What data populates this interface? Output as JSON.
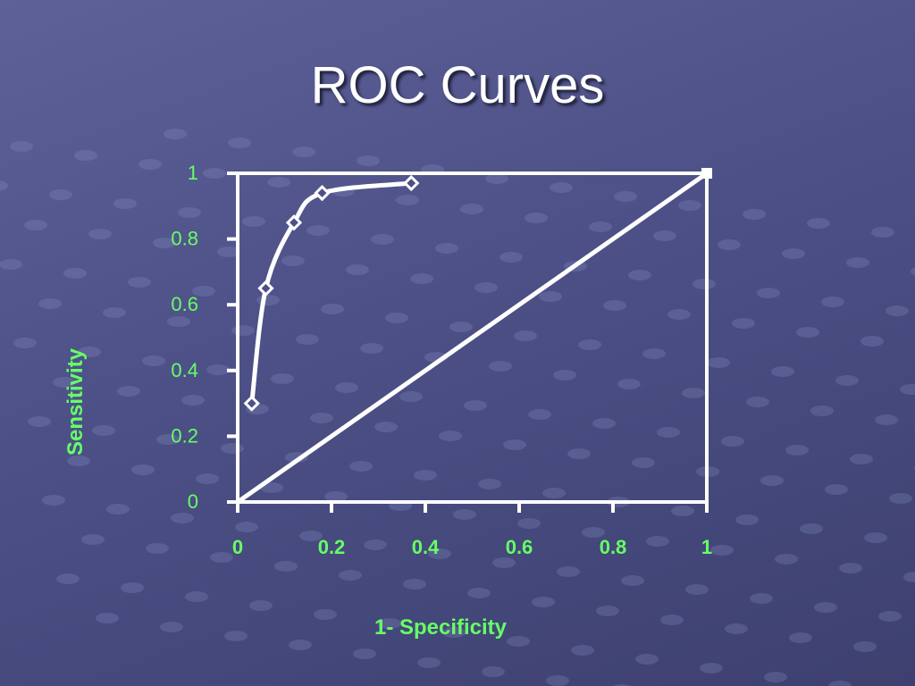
{
  "slide": {
    "title": "ROC Curves"
  },
  "colors": {
    "background_top": "#5d6197",
    "background_bottom": "#3d406f",
    "title": "#ffffff",
    "axis_text": "#66ff66",
    "line": "#ffffff"
  },
  "chart_data": {
    "type": "line",
    "title": "",
    "xlabel": "1- Specificity",
    "ylabel": "Sensitivity",
    "xlim": [
      0,
      1
    ],
    "ylim": [
      0,
      1
    ],
    "x_ticks": [
      "0",
      "0.2",
      "0.4",
      "0.6",
      "0.8",
      "1"
    ],
    "y_ticks": [
      "0",
      "0.2",
      "0.4",
      "0.6",
      "0.8",
      "1"
    ],
    "grid": false,
    "legend": "none",
    "series": [
      {
        "x": [
          0.03,
          0.06,
          0.12,
          0.18,
          0.37
        ],
        "y": [
          0.3,
          0.65,
          0.85,
          0.94,
          0.97
        ],
        "markers": "diamond",
        "smooth": true
      },
      {
        "x": [
          0,
          1
        ],
        "y": [
          0,
          1
        ],
        "markers": "square-end"
      }
    ]
  }
}
